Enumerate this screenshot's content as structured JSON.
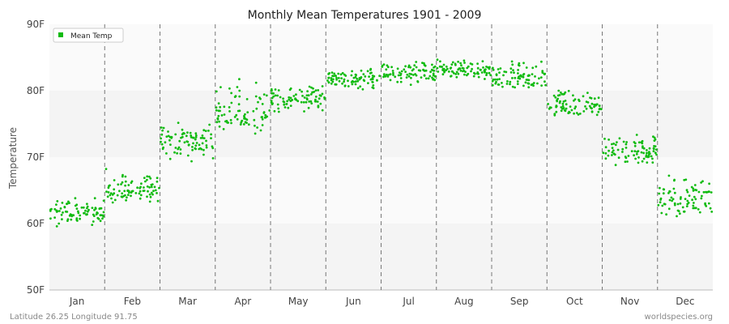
{
  "chart_data": {
    "type": "scatter",
    "title": "Monthly Mean Temperatures 1901 - 2009",
    "xlabel": "",
    "ylabel": "Temperature",
    "ylim": [
      50,
      90
    ],
    "y_ticks": [
      "50F",
      "60F",
      "70F",
      "80F",
      "90F"
    ],
    "y_tick_values": [
      50,
      60,
      70,
      80,
      90
    ],
    "categories": [
      "Jan",
      "Feb",
      "Mar",
      "Apr",
      "May",
      "Jun",
      "Jul",
      "Aug",
      "Sep",
      "Oct",
      "Nov",
      "Dec"
    ],
    "legend": {
      "position": "top-left",
      "entries": [
        "Mean Temp"
      ]
    },
    "grid": true,
    "series": [
      {
        "name": "Mean Temp",
        "color": "#11bb11",
        "monthly_mean": [
          61.5,
          65.0,
          72.5,
          76.5,
          78.8,
          81.8,
          82.6,
          83.0,
          81.8,
          77.8,
          71.0,
          63.8
        ],
        "monthly_min": [
          59.0,
          62.5,
          69.0,
          73.0,
          76.0,
          79.5,
          80.5,
          81.0,
          79.5,
          75.5,
          68.0,
          60.5
        ],
        "monthly_max": [
          65.0,
          68.5,
          76.0,
          82.5,
          81.5,
          84.0,
          85.0,
          85.0,
          85.5,
          81.0,
          74.5,
          68.0
        ]
      }
    ]
  },
  "footer": {
    "left": "Latitude 26.25 Longitude 91.75",
    "right": "worldspecies.org"
  }
}
